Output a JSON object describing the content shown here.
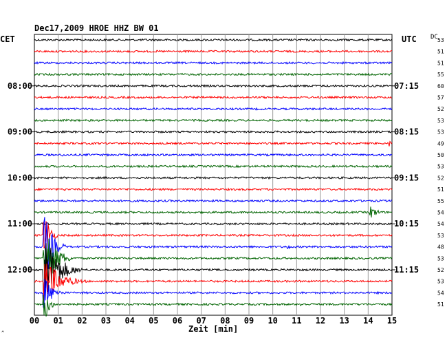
{
  "header": {
    "title": "Dec17,2009   HROE HHZ BW 01",
    "left_tz": "CET",
    "right_tz": "UTC",
    "dc_label": "DC"
  },
  "chart_data": {
    "type": "line",
    "title": "Dec17,2009   HROE HHZ BW 01",
    "xlabel": "Zeit [min]",
    "x_ticks": [
      "00",
      "01",
      "02",
      "03",
      "04",
      "05",
      "06",
      "07",
      "08",
      "09",
      "10",
      "11",
      "12",
      "13",
      "14",
      "15"
    ],
    "xlim": [
      0,
      15
    ],
    "grid": true,
    "trace_colors": [
      "#000000",
      "#ff0000",
      "#0000ff",
      "#006400"
    ],
    "left_time_labels": [
      {
        "row": 4,
        "text": "08:00"
      },
      {
        "row": 8,
        "text": "09:00"
      },
      {
        "row": 12,
        "text": "10:00"
      },
      {
        "row": 16,
        "text": "11:00"
      },
      {
        "row": 20,
        "text": "12:00"
      }
    ],
    "right_time_labels": [
      {
        "row": 4,
        "text": "07:15"
      },
      {
        "row": 8,
        "text": "08:15"
      },
      {
        "row": 12,
        "text": "09:15"
      },
      {
        "row": 16,
        "text": "10:15"
      },
      {
        "row": 20,
        "text": "11:15"
      }
    ],
    "dc_values": [
      "53",
      "51",
      "51",
      "55",
      "60",
      "57",
      "52",
      "53",
      "53",
      "49",
      "50",
      "53",
      "52",
      "51",
      "55",
      "54",
      "54",
      "53",
      "48",
      "53",
      "52",
      "53",
      "54",
      "51"
    ],
    "events": [
      {
        "row": 2,
        "minute": 1.9,
        "amp": 3,
        "dur": 0.3
      },
      {
        "row": 8,
        "minute": 2.5,
        "amp": 2,
        "dur": 0.3
      },
      {
        "row": 9,
        "minute": 14.9,
        "amp": 6,
        "dur": 0.15
      },
      {
        "row": 10,
        "minute": 1.2,
        "amp": 2,
        "dur": 0.4
      },
      {
        "row": 13,
        "minute": 1.3,
        "amp": 2,
        "dur": 0.3
      },
      {
        "row": 15,
        "minute": 14.1,
        "amp": 9,
        "dur": 0.9
      },
      {
        "row": 18,
        "minute": 10.6,
        "amp": 5,
        "dur": 0.4
      },
      {
        "row": 17,
        "minute": 0.4,
        "amp": 50,
        "dur": 0.6
      },
      {
        "row": 18,
        "minute": 0.4,
        "amp": 60,
        "dur": 0.9
      },
      {
        "row": 19,
        "minute": 0.4,
        "amp": 60,
        "dur": 1.2
      },
      {
        "row": 20,
        "minute": 0.4,
        "amp": 60,
        "dur": 1.6
      },
      {
        "row": 21,
        "minute": 0.4,
        "amp": 35,
        "dur": 1.8
      },
      {
        "row": 22,
        "minute": 0.4,
        "amp": 25,
        "dur": 1.0
      },
      {
        "row": 23,
        "minute": 0.4,
        "amp": 30,
        "dur": 0.6
      },
      {
        "row": 23,
        "minute": 11.2,
        "amp": 3,
        "dur": 0.3
      }
    ]
  }
}
